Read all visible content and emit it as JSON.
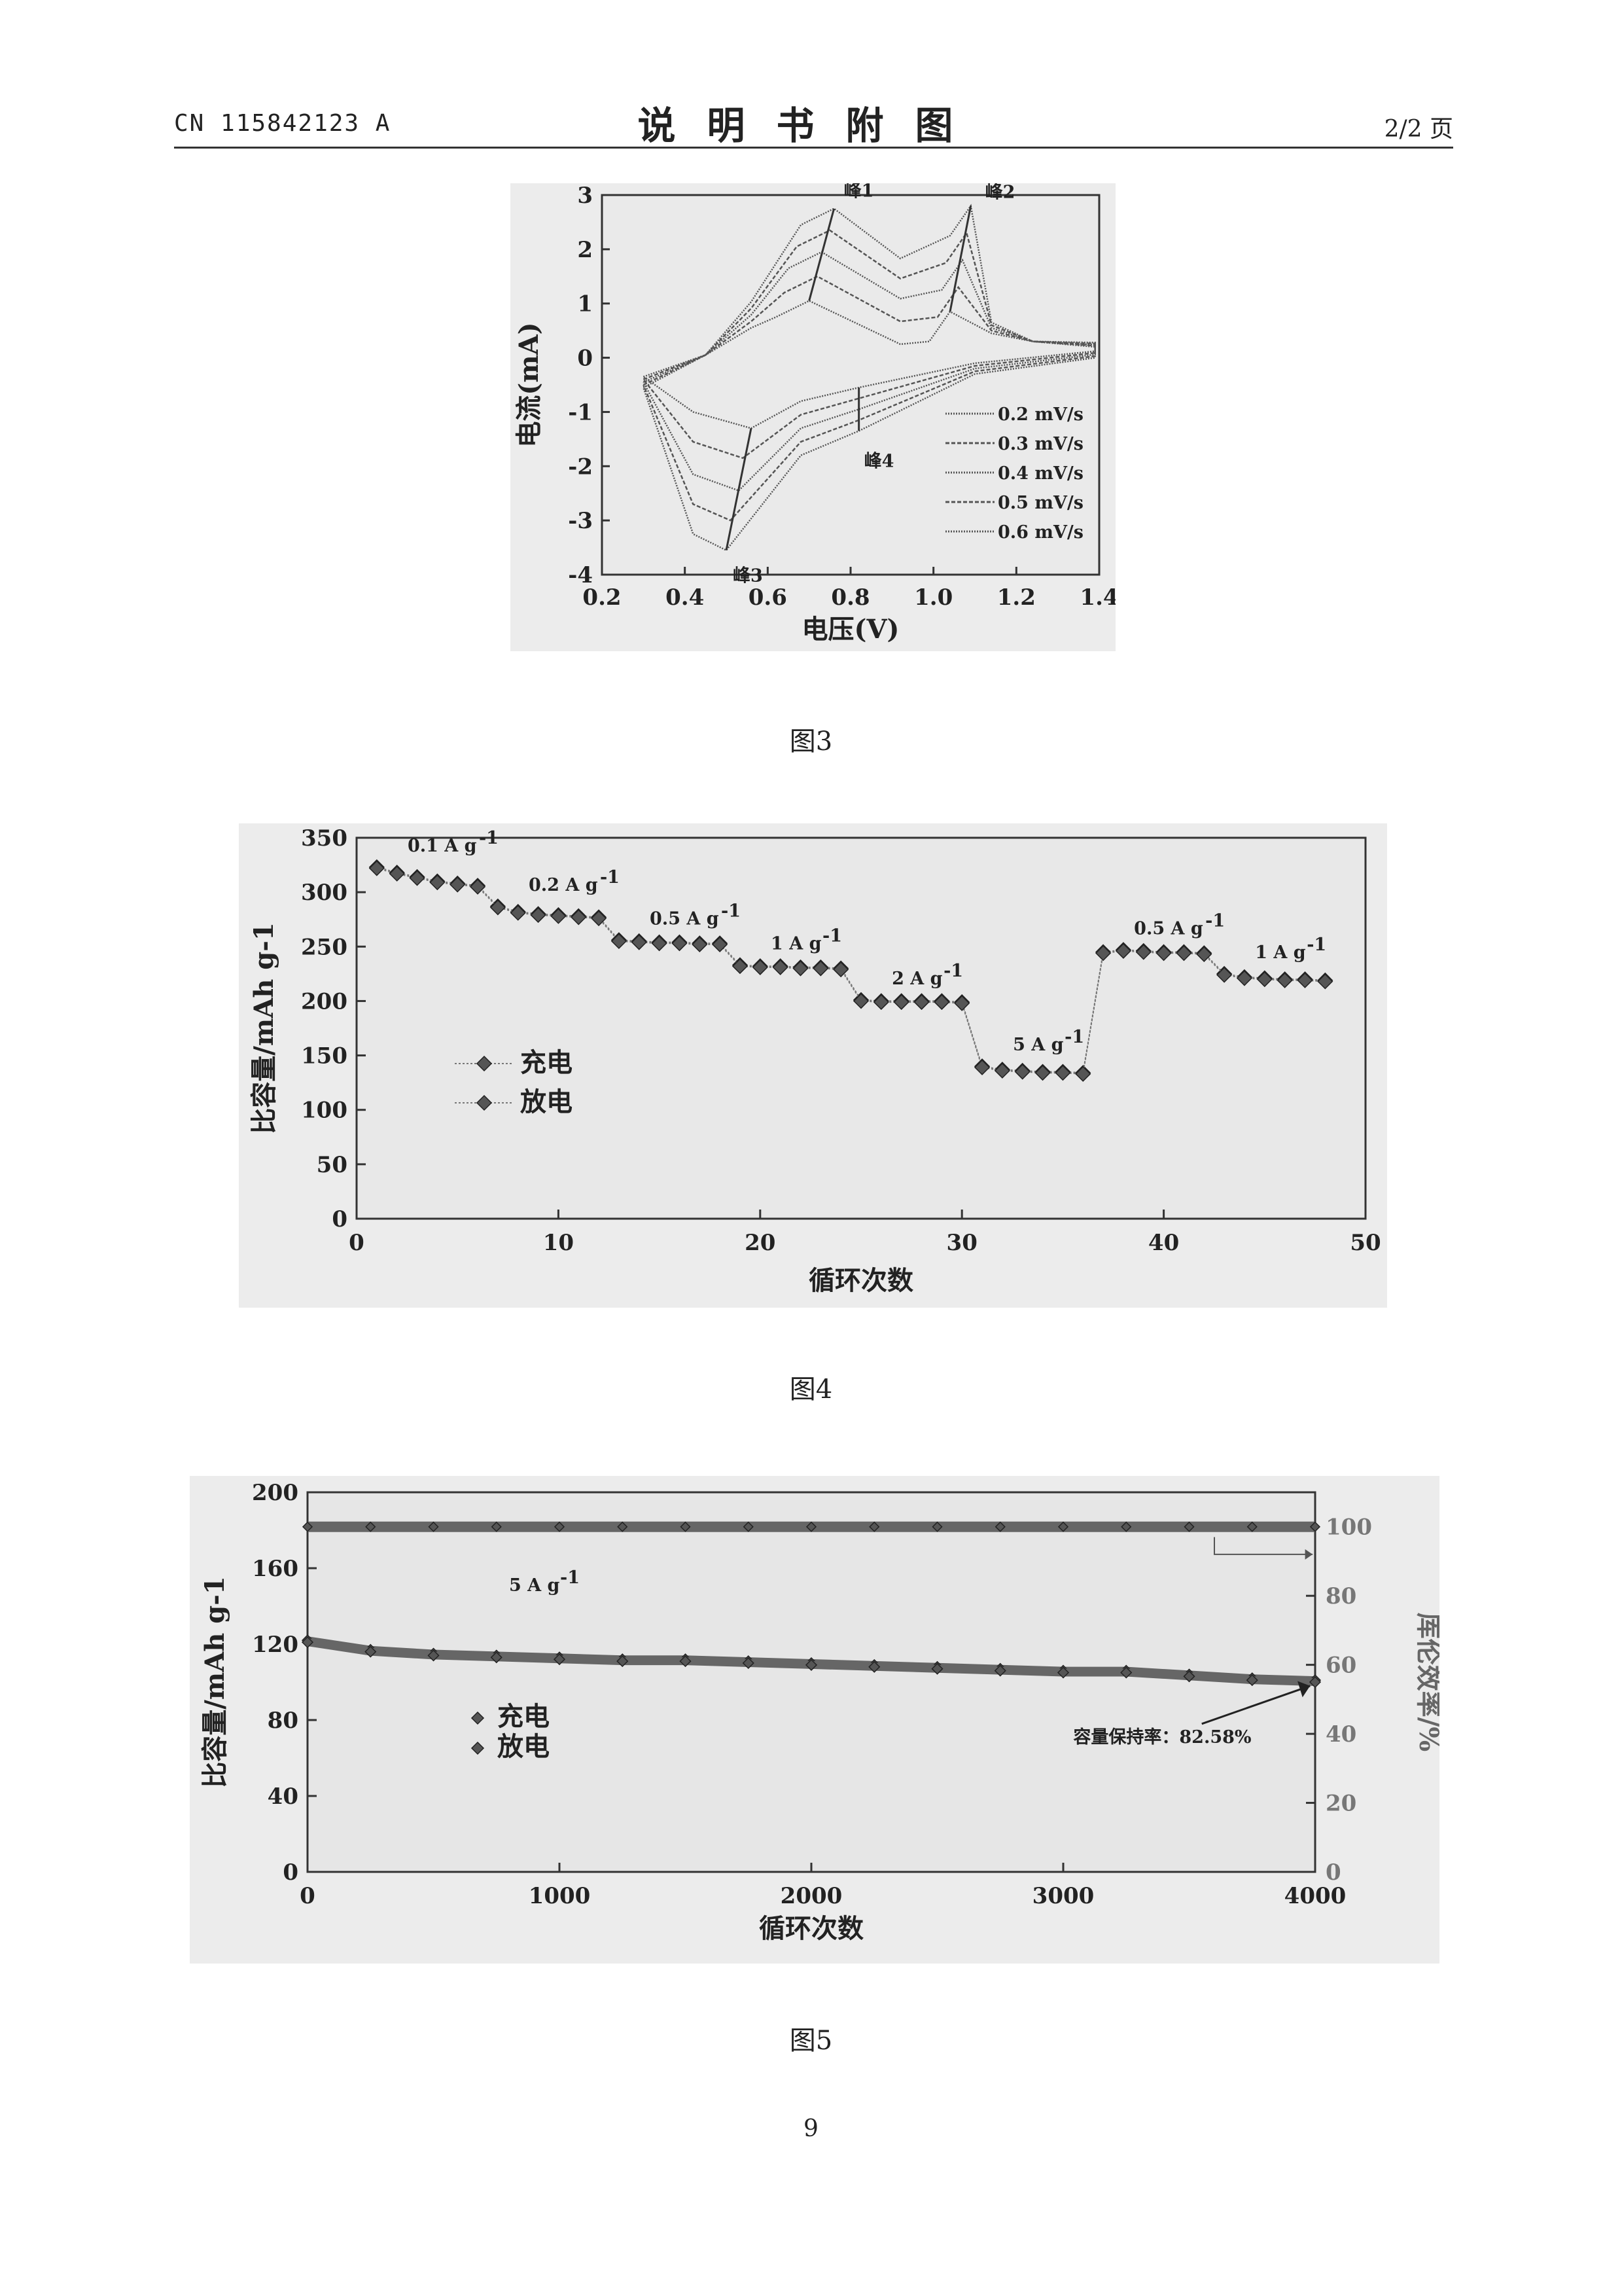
{
  "header": {
    "doc_number": "CN 115842123 A",
    "title": "说明书附图",
    "page_of": "2/2 页"
  },
  "figures": [
    {
      "caption": "图3",
      "chart_data": {
        "type": "line",
        "xlabel": "电压(V)",
        "ylabel": "电流(mA)",
        "xlim": [
          0.2,
          1.4
        ],
        "ylim": [
          -4,
          3
        ],
        "xticks": [
          "0.2",
          "0.4",
          "0.6",
          "0.8",
          "1.0",
          "1.2",
          "1.4"
        ],
        "yticks": [
          "-4",
          "-3",
          "-2",
          "-1",
          "0",
          "1",
          "2",
          "3"
        ],
        "legend_position": "bottom-right",
        "annotations": [
          "峰1",
          "峰2",
          "峰3",
          "峰4"
        ],
        "peak_positions": [
          {
            "label": "峰1",
            "x": 0.76,
            "y": 2.75
          },
          {
            "label": "峰2",
            "x": 1.09,
            "y": 2.8
          },
          {
            "label": "峰3",
            "x": 0.5,
            "y": -3.55
          },
          {
            "label": "峰4",
            "x": 0.82,
            "y": -1.35
          }
        ],
        "series": [
          {
            "name": "0.2 mV/s",
            "ox_peaks": [
              [
                0.7,
                1.05
              ],
              [
                1.04,
                0.85
              ]
            ],
            "red_peaks": [
              [
                0.56,
                -1.3
              ],
              [
                0.82,
                -0.55
              ]
            ]
          },
          {
            "name": "0.3 mV/s",
            "ox_peaks": [
              [
                0.72,
                1.5
              ],
              [
                1.06,
                1.3
              ]
            ],
            "red_peaks": [
              [
                0.54,
                -1.85
              ],
              [
                0.82,
                -0.75
              ]
            ]
          },
          {
            "name": "0.4 mV/s",
            "ox_peaks": [
              [
                0.73,
                1.95
              ],
              [
                1.07,
                1.8
              ]
            ],
            "red_peaks": [
              [
                0.53,
                -2.45
              ],
              [
                0.82,
                -0.95
              ]
            ]
          },
          {
            "name": "0.5 mV/s",
            "ox_peaks": [
              [
                0.75,
                2.35
              ],
              [
                1.08,
                2.3
              ]
            ],
            "red_peaks": [
              [
                0.51,
                -3.0
              ],
              [
                0.82,
                -1.15
              ]
            ]
          },
          {
            "name": "0.6 mV/s",
            "ox_peaks": [
              [
                0.76,
                2.75
              ],
              [
                1.09,
                2.8
              ]
            ],
            "red_peaks": [
              [
                0.5,
                -3.55
              ],
              [
                0.82,
                -1.35
              ]
            ]
          }
        ]
      }
    },
    {
      "caption": "图4",
      "chart_data": {
        "type": "scatter",
        "xlabel": "循环次数",
        "ylabel": "比容量/mAh g-1",
        "xlim": [
          0,
          50
        ],
        "ylim": [
          0,
          350
        ],
        "xticks": [
          "0",
          "10",
          "20",
          "30",
          "40",
          "50"
        ],
        "yticks": [
          "0",
          "50",
          "100",
          "150",
          "200",
          "250",
          "300",
          "350"
        ],
        "legend_position": "middle-left",
        "rate_labels": [
          "0.1 A g",
          "0.2 A g",
          "0.5 A g",
          "1 A g",
          "2 A g",
          "5 A g",
          "0.5 A g",
          "1 A g"
        ],
        "rate_superscript": "-1",
        "cycles": [
          1,
          2,
          3,
          4,
          5,
          6,
          7,
          8,
          9,
          10,
          11,
          12,
          13,
          14,
          15,
          16,
          17,
          18,
          19,
          20,
          21,
          22,
          23,
          24,
          25,
          26,
          27,
          28,
          29,
          30,
          31,
          32,
          33,
          34,
          35,
          36,
          37,
          38,
          39,
          40,
          41,
          42,
          43,
          44,
          45,
          46,
          47,
          48
        ],
        "series": [
          {
            "name": "充电",
            "values": [
              323,
              318,
              314,
              310,
              308,
              306,
              287,
              282,
              280,
              279,
              278,
              277,
              256,
              255,
              254,
              254,
              253,
              253,
              233,
              232,
              232,
              231,
              231,
              230,
              201,
              200,
              200,
              200,
              200,
              199,
              140,
              137,
              136,
              135,
              135,
              134,
              245,
              247,
              246,
              245,
              245,
              244,
              225,
              222,
              221,
              220,
              220,
              219
            ]
          },
          {
            "name": "放电",
            "values": [
              322,
              317,
              313,
              309,
              307,
              305,
              286,
              281,
              279,
              278,
              277,
              276,
              255,
              254,
              253,
              253,
              252,
              252,
              232,
              231,
              231,
              230,
              230,
              229,
              200,
              199,
              199,
              199,
              199,
              198,
              139,
              136,
              135,
              134,
              134,
              133,
              244,
              246,
              245,
              244,
              244,
              243,
              224,
              221,
              220,
              219,
              219,
              218
            ]
          }
        ]
      }
    },
    {
      "caption": "图5",
      "chart_data": {
        "type": "scatter",
        "xlabel": "循环次数",
        "ylabel": "比容量/mAh g-1",
        "ylabel_right": "库伦效率/%",
        "xlim": [
          0,
          4000
        ],
        "ylim": [
          0,
          200
        ],
        "ylim_right": [
          0,
          110
        ],
        "xticks": [
          "0",
          "1000",
          "2000",
          "3000",
          "4000"
        ],
        "yticks": [
          "0",
          "40",
          "80",
          "120",
          "160",
          "200"
        ],
        "yticks_right": [
          "0",
          "20",
          "40",
          "60",
          "80",
          "100"
        ],
        "legend_position": "middle-left",
        "rate_label": "5 A g",
        "rate_superscript": "-1",
        "retention_label": "容量保持率：82.58%",
        "x": [
          0,
          250,
          500,
          750,
          1000,
          1250,
          1500,
          1750,
          2000,
          2250,
          2500,
          2750,
          3000,
          3250,
          3500,
          3750,
          4000
        ],
        "series": [
          {
            "name": "充电",
            "values": [
              122,
              117,
              115,
              114,
              113,
              112,
              112,
              111,
              110,
              109,
              108,
              107,
              106,
              106,
              104,
              102,
              101
            ]
          },
          {
            "name": "放电",
            "values": [
              121,
              116,
              114,
              113,
              112,
              111,
              111,
              110,
              109,
              108,
              107,
              106,
              105,
              105,
              103,
              101,
              100
            ]
          },
          {
            "name": "库伦效率",
            "axis": "right",
            "values": [
              100,
              100,
              100,
              100,
              100,
              100,
              100,
              100,
              100,
              100,
              100,
              100,
              100,
              100,
              100,
              100,
              100
            ]
          }
        ]
      }
    }
  ],
  "page_number": "9"
}
